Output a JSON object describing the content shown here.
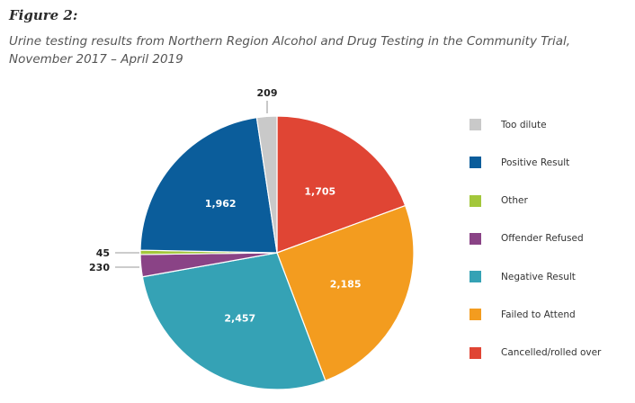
{
  "figure_label": "Figure 2:",
  "subtitle_lines": [
    "Urine testing results from Northern Region Alcohol and Drug Testing in the Community Trial,",
    "November 2017 – April 2019"
  ],
  "chart_data": {
    "type": "pie",
    "title": "Urine testing results from Northern Region Alcohol and Drug Testing in the Community Trial, November 2017 – April 2019",
    "slices": [
      {
        "name": "Cancelled/rolled over",
        "value": 1705,
        "label": "1,705",
        "color": "#e04534"
      },
      {
        "name": "Failed to Attend",
        "value": 2185,
        "label": "2,185",
        "color": "#f39c1f"
      },
      {
        "name": "Negative Result",
        "value": 2457,
        "label": "2,457",
        "color": "#35a2b5"
      },
      {
        "name": "Offender Refused",
        "value": 230,
        "label": "230",
        "color": "#8a4386"
      },
      {
        "name": "Other",
        "value": 45,
        "label": "45",
        "color": "#a3c73b"
      },
      {
        "name": "Positive Result",
        "value": 1962,
        "label": "1,962",
        "color": "#0b5d9b"
      },
      {
        "name": "Too dilute",
        "value": 209,
        "label": "209",
        "color": "#c9c9c9"
      }
    ],
    "start": "12 o'clock",
    "direction": "clockwise",
    "legend_position": "right",
    "legend_order": [
      "Too dilute",
      "Positive Result",
      "Other",
      "Offender Refused",
      "Negative Result",
      "Failed to Attend",
      "Cancelled/rolled over"
    ]
  }
}
